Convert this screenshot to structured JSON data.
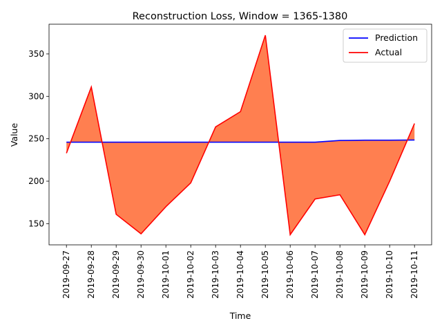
{
  "chart_data": {
    "type": "area",
    "title": "Reconstruction Loss, Window = 1365-1380",
    "xlabel": "Time",
    "ylabel": "Value",
    "x": [
      "2019-09-27",
      "2019-09-28",
      "2019-09-29",
      "2019-09-30",
      "2019-10-01",
      "2019-10-02",
      "2019-10-03",
      "2019-10-04",
      "2019-10-05",
      "2019-10-06",
      "2019-10-07",
      "2019-10-08",
      "2019-10-09",
      "2019-10-10",
      "2019-10-11"
    ],
    "series": [
      {
        "name": "Prediction",
        "color": "#0000ff",
        "values": [
          246,
          246,
          246,
          246,
          246,
          246,
          246,
          246,
          246,
          246,
          246,
          248,
          248.3,
          248.3,
          248.5
        ]
      },
      {
        "name": "Actual",
        "color": "#ff0000",
        "values": [
          233,
          311,
          161,
          138,
          170,
          198,
          264,
          282,
          372,
          137,
          179,
          184,
          137,
          200,
          268
        ]
      }
    ],
    "fill_color": "#ff7f50",
    "ylim": [
      125,
      385
    ],
    "yticks": [
      150,
      200,
      250,
      300,
      350
    ],
    "legend": "top-right",
    "grid": false
  }
}
